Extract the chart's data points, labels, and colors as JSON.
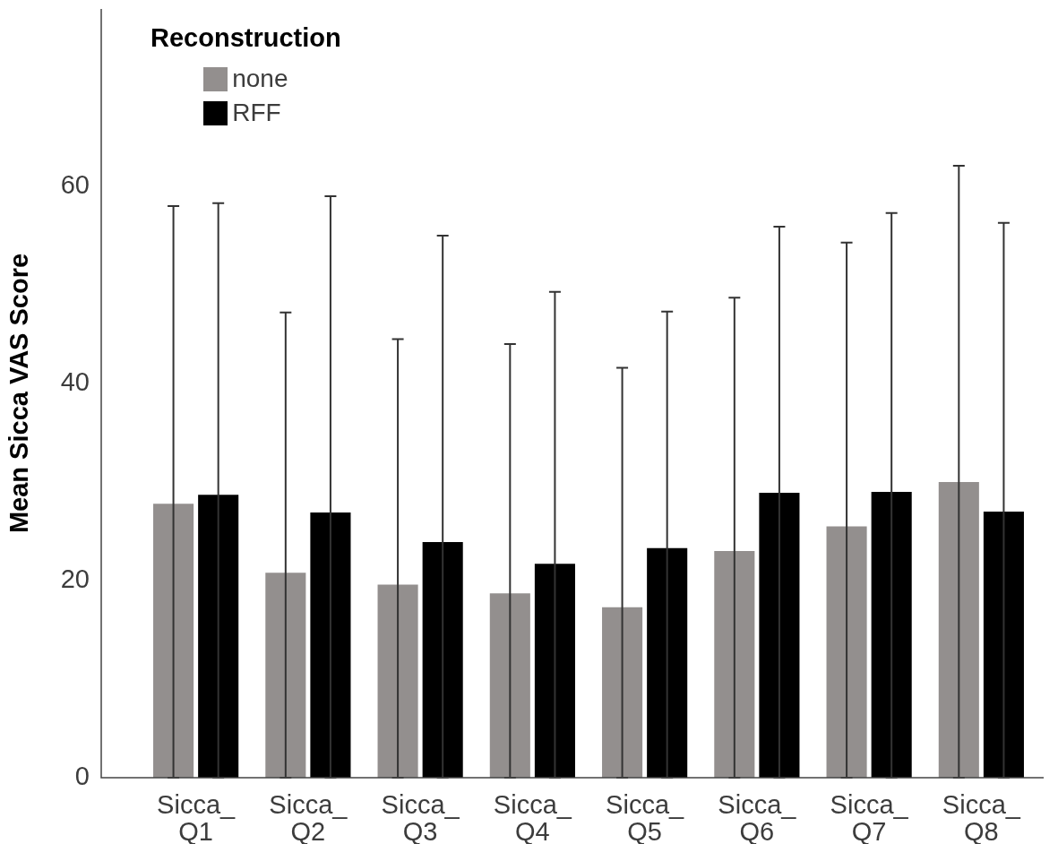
{
  "chart_data": {
    "type": "bar",
    "ylabel": "Mean Sicca VAS Score",
    "legend_title": "Reconstruction",
    "legend": "top left",
    "categories": [
      "Sicca_Q1",
      "Sicca_Q2",
      "Sicca_Q3",
      "Sicca_Q4",
      "Sicca_Q5",
      "Sicca_Q6",
      "Sicca_Q7",
      "Sicca_Q8"
    ],
    "series": [
      {
        "name": "none",
        "color": "#938f8e",
        "values": [
          27.8,
          20.8,
          19.6,
          18.7,
          17.3,
          23.0,
          25.5,
          30.0
        ],
        "errors": [
          [
            0,
            58.0
          ],
          [
            0,
            47.2
          ],
          [
            0,
            44.5
          ],
          [
            0,
            44.0
          ],
          [
            0,
            41.6
          ],
          [
            0,
            48.7
          ],
          [
            0,
            54.3
          ],
          [
            0,
            62.1
          ]
        ]
      },
      {
        "name": "RFF",
        "color": "#000000",
        "values": [
          28.7,
          26.9,
          23.9,
          21.7,
          23.3,
          28.9,
          29.0,
          27.0
        ],
        "errors": [
          [
            0,
            58.3
          ],
          [
            0,
            59.0
          ],
          [
            0,
            55.0
          ],
          [
            0,
            49.3
          ],
          [
            0,
            47.3
          ],
          [
            0,
            55.9
          ],
          [
            0,
            57.3
          ],
          [
            0,
            56.3
          ]
        ]
      }
    ],
    "ylim": [
      0,
      78
    ],
    "yticks": [
      0,
      20,
      40,
      60
    ]
  }
}
